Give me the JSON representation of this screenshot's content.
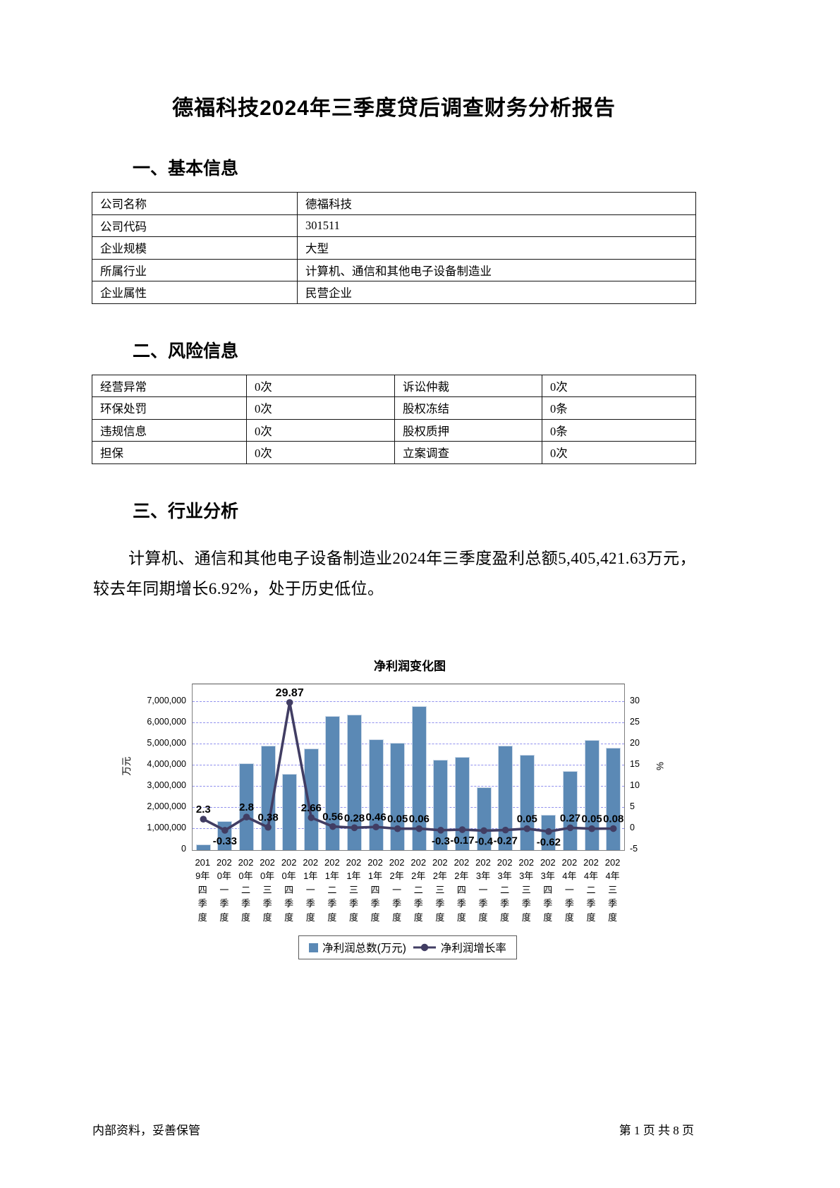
{
  "page": {
    "title": "德福科技2024年三季度贷后调查财务分析报告",
    "footer_left": "内部资料，妥善保管",
    "footer_right": "第 1 页 共 8 页"
  },
  "sections": {
    "basic": {
      "heading": "一、基本信息",
      "rows": [
        {
          "label": "公司名称",
          "value": "德福科技"
        },
        {
          "label": "公司代码",
          "value": "301511"
        },
        {
          "label": "企业规模",
          "value": "大型"
        },
        {
          "label": "所属行业",
          "value": "计算机、通信和其他电子设备制造业"
        },
        {
          "label": "企业属性",
          "value": "民营企业"
        }
      ]
    },
    "risk": {
      "heading": "二、风险信息",
      "rows": [
        [
          "经营异常",
          "0次",
          "诉讼仲裁",
          "0次"
        ],
        [
          "环保处罚",
          "0次",
          "股权冻结",
          "0条"
        ],
        [
          "违规信息",
          "0次",
          "股权质押",
          "0条"
        ],
        [
          "担保",
          "0次",
          "立案调查",
          "0次"
        ]
      ]
    },
    "industry": {
      "heading": "三、行业分析",
      "paragraph": "计算机、通信和其他电子设备制造业2024年三季度盈利总额5,405,421.63万元，较去年同期增长6.92%，处于历史低位。"
    }
  },
  "chart_data": {
    "type": "bar",
    "title": "净利润变化图",
    "categories": [
      "2019年四季度",
      "2020年一季度",
      "2020年二季度",
      "2020年三季度",
      "2020年四季度",
      "2021年一季度",
      "2021年二季度",
      "2021年三季度",
      "2021年四季度",
      "2022年一季度",
      "2022年二季度",
      "2022年三季度",
      "2022年四季度",
      "2023年一季度",
      "2023年二季度",
      "2023年三季度",
      "2023年四季度",
      "2024年一季度",
      "2024年二季度",
      "2024年三季度"
    ],
    "series": [
      {
        "name": "净利润总数(万元)",
        "type": "bar",
        "axis": "left",
        "values": [
          250000,
          1350000,
          4070000,
          4930000,
          3600000,
          4770000,
          6330000,
          6370000,
          5230000,
          5050000,
          6800000,
          4250000,
          4370000,
          2950000,
          4930000,
          4470000,
          1650000,
          3730000,
          5200000,
          4820000
        ]
      },
      {
        "name": "净利润增长率",
        "type": "line",
        "axis": "right",
        "values": [
          2.3,
          -0.33,
          2.8,
          0.38,
          29.87,
          2.66,
          0.56,
          0.28,
          0.46,
          0.05,
          0.06,
          -0.3,
          -0.17,
          -0.4,
          -0.27,
          0.05,
          -0.62,
          0.27,
          0.05,
          0.08
        ],
        "data_labels": [
          "2.3",
          "-0.33",
          "2.8",
          "0.38",
          "29.87",
          "2.66",
          "0.56",
          "0.28",
          "0.46",
          "0.05",
          "0.06",
          "-0.3",
          "-0.17",
          "-0.4",
          "-0.27",
          "0.05",
          "-0.62",
          "0.27",
          "0.05",
          "0.08"
        ]
      }
    ],
    "left_axis": {
      "label": "万元",
      "min": 0,
      "max": 7833333,
      "ticks": [
        0,
        1000000,
        2000000,
        3000000,
        4000000,
        5000000,
        6000000,
        7000000
      ]
    },
    "right_axis": {
      "label": "%",
      "min": -5,
      "max": 30,
      "ticks": [
        -5,
        0,
        5,
        10,
        15,
        20,
        25,
        30
      ]
    },
    "grid": "horizontal dashed",
    "legend_position": "bottom",
    "colors": {
      "bar": "#5b89b5",
      "line": "#413d63",
      "grid": "#9191ee"
    }
  }
}
